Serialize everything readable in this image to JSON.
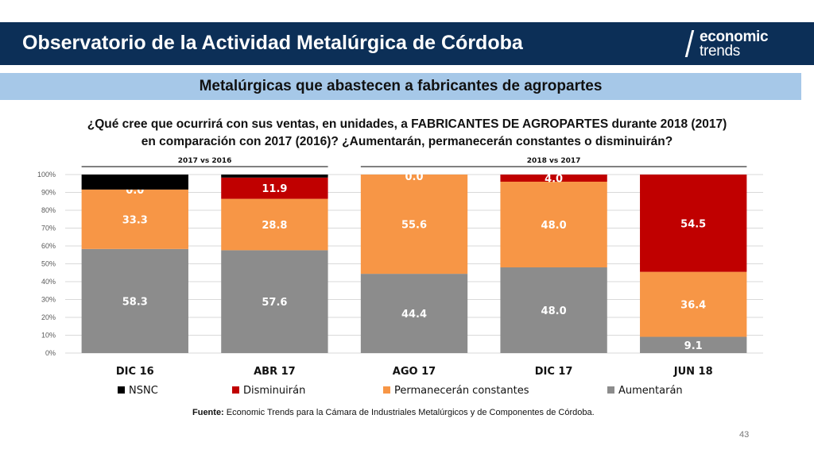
{
  "header": {
    "title": "Observatorio de la Actividad Metalúrgica de Córdoba",
    "logo_line1": "economic",
    "logo_line2": "trends"
  },
  "subheader": {
    "title": "Metalúrgicas que abastecen a fabricantes de agropartes"
  },
  "question": {
    "line1": "¿Qué cree que ocurrirá con sus ventas, en unidades, a FABRICANTES DE AGROPARTES durante 2018 (2017)",
    "line2": "en comparación con 2017 (2016)? ¿Aumentarán, permanecerán constantes o disminuirán?"
  },
  "source": {
    "label": "Fuente:",
    "text": " Economic Trends para la Cámara de Industriales Metalúrgicos y de Componentes de Córdoba."
  },
  "page_number": "43",
  "colors": {
    "nsnc": "#000000",
    "disminuiran": "#c00000",
    "permaneceran": "#f79646",
    "aumentaran": "#8c8c8c"
  },
  "chart_data": {
    "type": "bar",
    "stacked": true,
    "categories": [
      "DIC 16",
      "ABR 17",
      "AGO 17",
      "DIC 17",
      "JUN 18"
    ],
    "ylim": [
      0,
      100
    ],
    "yticks": [
      "0%",
      "10%",
      "20%",
      "30%",
      "40%",
      "50%",
      "60%",
      "70%",
      "80%",
      "90%",
      "100%"
    ],
    "group_labels": [
      {
        "label": "2017 vs 2016",
        "categories": [
          0,
          1
        ]
      },
      {
        "label": "2018 vs 2017",
        "categories": [
          2,
          4
        ]
      }
    ],
    "series": [
      {
        "name": "Aumentarán",
        "color": "#8c8c8c",
        "values": [
          58.3,
          57.6,
          44.4,
          48.0,
          9.1
        ],
        "labels": [
          "58.3",
          "57.6",
          "44.4",
          "48.0",
          "9.1"
        ]
      },
      {
        "name": "Permanecerán constantes",
        "color": "#f79646",
        "values": [
          33.3,
          28.8,
          55.6,
          48.0,
          36.4
        ],
        "labels": [
          "33.3",
          "28.8",
          "55.6",
          "48.0",
          "36.4"
        ]
      },
      {
        "name": "Disminuirán",
        "color": "#c00000",
        "values": [
          0.0,
          11.9,
          0.0,
          4.0,
          54.5
        ],
        "labels": [
          "0.0",
          "11.9",
          "0.0",
          "4.0",
          "54.5"
        ]
      },
      {
        "name": "NSNC",
        "color": "#000000",
        "values": [
          8.4,
          1.7,
          0.0,
          0.0,
          0.0
        ],
        "labels": [
          "",
          "",
          "",
          "",
          ""
        ]
      }
    ],
    "legend": {
      "placement": "bottom",
      "order": [
        "NSNC",
        "Disminuirán",
        "Permanecerán constantes",
        "Aumentarán"
      ]
    },
    "grid": true
  }
}
